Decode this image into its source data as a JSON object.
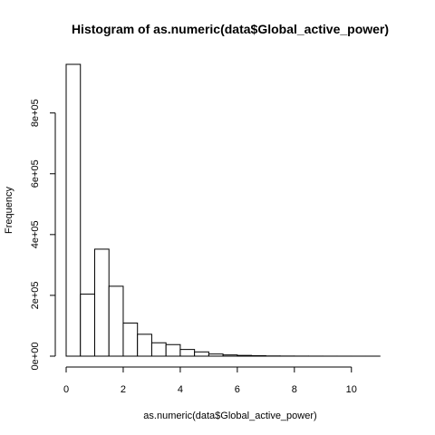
{
  "chart_data": {
    "type": "bar",
    "title": "Histogram of as.numeric(data$Global_active_power)",
    "xlabel": "as.numeric(data$Global_active_power)",
    "ylabel": "Frequency",
    "bin_width": 0.5,
    "bin_starts": [
      0,
      0.5,
      1,
      1.5,
      2,
      2.5,
      3,
      3.5,
      4,
      4.5,
      5,
      5.5,
      6,
      6.5,
      7,
      7.5,
      8,
      8.5,
      9,
      9.5,
      10,
      10.5,
      11
    ],
    "values": [
      960000,
      204000,
      352000,
      230000,
      109000,
      72000,
      44000,
      38000,
      22000,
      14000,
      7000,
      4000,
      2500,
      1500,
      700,
      400,
      250,
      150,
      100,
      60,
      40,
      20,
      10
    ],
    "xlim": [
      0,
      11.5
    ],
    "ylim": [
      0,
      960000
    ],
    "x_ticks": [
      0,
      2,
      4,
      6,
      8,
      10
    ],
    "x_tick_labels": [
      "0",
      "2",
      "4",
      "6",
      "8",
      "10"
    ],
    "y_ticks": [
      0,
      200000,
      400000,
      600000,
      800000
    ],
    "y_tick_labels": [
      "0e+00",
      "2e+05",
      "4e+05",
      "6e+05",
      "8e+05"
    ],
    "grid": false,
    "legend": "none"
  }
}
